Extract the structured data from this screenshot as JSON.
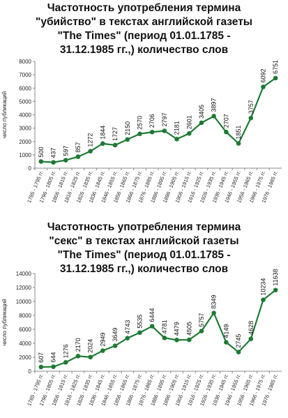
{
  "charts": [
    {
      "title_lines": [
        "Частотность употребления термина",
        "\"убийство\" в текстах английской газеты",
        "\"The Times\" (период 01.01.1785 -",
        "31.12.1985 гг.,) количество слов"
      ]
    },
    {
      "title_lines": [
        "Частотность употребления термина",
        "\"секс\" в текстах английской газеты",
        "\"The Times\" (период 01.01.1785 -",
        "31.12.1985 гг.,) количество слов"
      ]
    }
  ],
  "chart_data": [
    {
      "type": "line",
      "title": "Частотность употребления термина \"убийство\" в текстах английской газеты \"The Times\" (период 01.01.1785 - 31.12.1985 гг.,) количество слов",
      "ylabel": "число публикаций",
      "xlabel": "",
      "ylim": [
        0,
        8000
      ],
      "yticks": [
        0,
        1000,
        2000,
        3000,
        4000,
        5000,
        6000,
        7000,
        8000
      ],
      "grid": false,
      "line_color": "#1e7a34",
      "categories": [
        "1785 - 1795 гг.",
        "1796 - 1805 гг.",
        "1806 - 1815 гг.",
        "1816 - 1825 гг.",
        "1826 - 1835 гг.",
        "1836 - 1845 гг.",
        "1846 - 1855 гг.",
        "1856 - 1865 гг.",
        "1866 - 1875 гг.",
        "1876 - 1885 гг.",
        "1886 - 1895 гг.",
        "1896 - 1905 гг.",
        "1906 - 1915 гг.",
        "1916 - 1925 гг.",
        "1926 - 1935 гг.",
        "1936 - 1945 гг.",
        "1946 - 1955 гг.",
        "1956 - 1965 гг.",
        "1966 - 1975 гг.",
        "1976 - 1985 гг."
      ],
      "values": [
        500,
        437,
        597,
        857,
        1272,
        1844,
        1727,
        2150,
        2570,
        2706,
        2797,
        2181,
        2601,
        3405,
        3897,
        2707,
        1851,
        3757,
        6092,
        6751
      ],
      "labels": [
        "500",
        "437",
        "597",
        "857",
        "1272",
        "1844",
        "1727",
        "2150",
        "2570",
        "2706",
        "2797",
        "2181",
        "2601",
        "3405",
        "3897",
        "2707",
        "1851",
        "3757",
        "6092",
        "6751"
      ]
    },
    {
      "type": "line",
      "title": "Частотность употребления термина \"секс\" в текстах английской газеты \"The Times\" (период 01.01.1785 - 31.12.1985 гг.,) количество слов",
      "ylabel": "число публикаций",
      "xlabel": "",
      "ylim": [
        0,
        14000
      ],
      "yticks": [
        0,
        2000,
        4000,
        6000,
        8000,
        10000,
        12000,
        14000
      ],
      "grid": false,
      "line_color": "#1e7a34",
      "categories": [
        "1785 - 1795 гг.",
        "1796 - 1805 гг.",
        "1806 - 1815 гг.",
        "1816 - 1825 гг.",
        "1826 - 1835 гг.",
        "1836 - 1845 гг.",
        "1846 - 1855 гг.",
        "1856 - 1865 гг.",
        "1866 - 1875 гг.",
        "1876 - 1885 гг.",
        "1886 - 1895 гг.",
        "1896 - 1905 гг.",
        "1906 - 1915 гг.",
        "1916 - 1925 гг.",
        "1926 - 1935 гг.",
        "1936 - 1945 гг.",
        "1946 - 1955 гг.",
        "1956 - 1965 гг.",
        "1966 - 1975 гг.",
        "1976 - 1985 гг."
      ],
      "values": [
        607,
        644,
        1276,
        2170,
        2024,
        2949,
        3649,
        4743,
        5535,
        6444,
        4781,
        4479,
        4505,
        5757,
        8349,
        4149,
        2745,
        4628,
        10234,
        11638
      ],
      "labels": [
        "607",
        "644",
        "1276",
        "2170",
        "2024",
        "2949",
        "3649",
        "4743",
        "5535",
        "6444",
        "4781",
        "4479",
        "4505",
        "5757",
        "8349",
        "4149",
        "2745",
        "4628",
        "10234",
        "11638"
      ]
    }
  ]
}
